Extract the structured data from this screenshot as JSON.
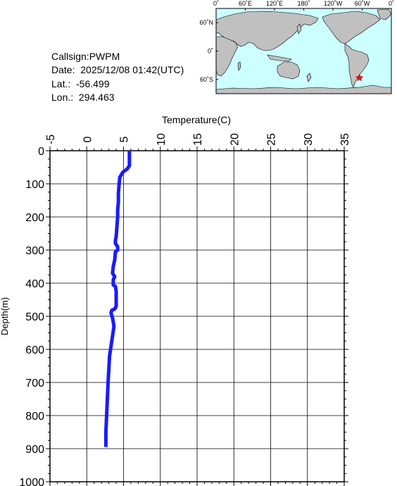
{
  "station": {
    "callsign_line": "Callsign:PWPM",
    "date_line": "Date:  2025/12/08 01:42(UTC)",
    "lat_line": "Lat.:  -56.499",
    "lon_line": "Lon.:  294.463",
    "latitude": -56.499,
    "longitude": 294.463
  },
  "map": {
    "lon_labels": [
      "0˚",
      "60˚E",
      "120˚E",
      "180˚",
      "120˚W",
      "60˚W",
      "0˚"
    ],
    "lat_labels": [
      "60˚N",
      "0˚",
      "60˚S"
    ],
    "colors": {
      "ocean": "#ccffff",
      "land": "#c0c0c0",
      "marker": "#ff0000"
    },
    "marker_icon": "star-icon"
  },
  "chart_data": {
    "type": "line",
    "title": "",
    "xlabel": "Temperature(C)",
    "ylabel": "Depth(m)",
    "xlim": [
      -5,
      35
    ],
    "ylim": [
      1000,
      0
    ],
    "x_ticks": [
      "-5",
      "0",
      "5",
      "10",
      "15",
      "20",
      "25",
      "30",
      "35"
    ],
    "y_ticks": [
      "0",
      "100",
      "200",
      "300",
      "400",
      "500",
      "600",
      "700",
      "800",
      "900",
      "1000"
    ],
    "x_tick_values": [
      -5,
      0,
      5,
      10,
      15,
      20,
      25,
      30,
      35
    ],
    "y_tick_values": [
      0,
      100,
      200,
      300,
      400,
      500,
      600,
      700,
      800,
      900,
      1000
    ],
    "x_axis_position": "top",
    "grid": true,
    "series_color": "#1a1aff",
    "series": [
      {
        "points": [
          [
            5.8,
            0
          ],
          [
            5.8,
            20
          ],
          [
            5.8,
            45
          ],
          [
            5.5,
            55
          ],
          [
            4.9,
            65
          ],
          [
            4.5,
            80
          ],
          [
            4.4,
            100
          ],
          [
            4.3,
            130
          ],
          [
            4.3,
            155
          ],
          [
            4.2,
            180
          ],
          [
            4.2,
            200
          ],
          [
            4.1,
            230
          ],
          [
            4.0,
            260
          ],
          [
            3.9,
            270
          ],
          [
            3.9,
            280
          ],
          [
            4.2,
            290
          ],
          [
            4.2,
            300
          ],
          [
            3.9,
            305
          ],
          [
            3.8,
            330
          ],
          [
            3.6,
            350
          ],
          [
            3.5,
            370
          ],
          [
            3.8,
            380
          ],
          [
            3.6,
            390
          ],
          [
            3.6,
            405
          ],
          [
            3.9,
            410
          ],
          [
            4.0,
            425
          ],
          [
            4.0,
            470
          ],
          [
            3.8,
            478
          ],
          [
            3.4,
            482
          ],
          [
            3.3,
            490
          ],
          [
            3.5,
            505
          ],
          [
            3.7,
            530
          ],
          [
            3.5,
            560
          ],
          [
            3.3,
            590
          ],
          [
            3.1,
            620
          ],
          [
            3.0,
            660
          ],
          [
            2.9,
            700
          ],
          [
            2.8,
            750
          ],
          [
            2.7,
            800
          ],
          [
            2.6,
            850
          ],
          [
            2.6,
            880
          ],
          [
            2.6,
            895
          ]
        ]
      }
    ]
  }
}
